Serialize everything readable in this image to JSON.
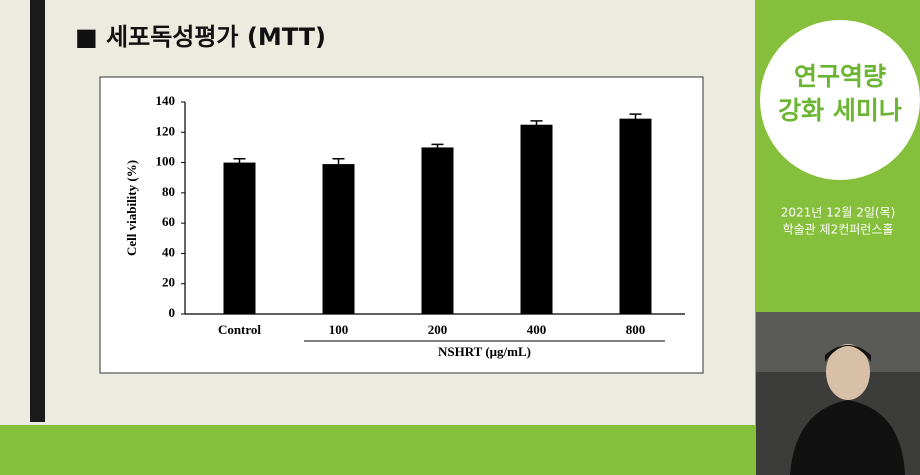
{
  "slide": {
    "title": "■ 세포독성평가 (MTT)"
  },
  "chart_data": {
    "type": "bar",
    "ylabel": "Cell viability (%)",
    "xlabel": "NSHRT (μg/mL)",
    "categories": [
      "Control",
      "100",
      "200",
      "400",
      "800"
    ],
    "values": [
      100,
      99,
      110,
      125,
      129
    ],
    "errors": [
      2.5,
      3.5,
      2,
      2.5,
      3
    ],
    "color": "#000000",
    "ylim": [
      0,
      140
    ],
    "yticks": [
      0,
      20,
      40,
      60,
      80,
      100,
      120,
      140
    ],
    "grid": false
  },
  "sidebar": {
    "title_lines": [
      "연구역량",
      "강화 세미나"
    ],
    "info_lines": [
      "2021년 12월 2일(목)",
      "학술관 제2컨퍼런스홀"
    ]
  }
}
